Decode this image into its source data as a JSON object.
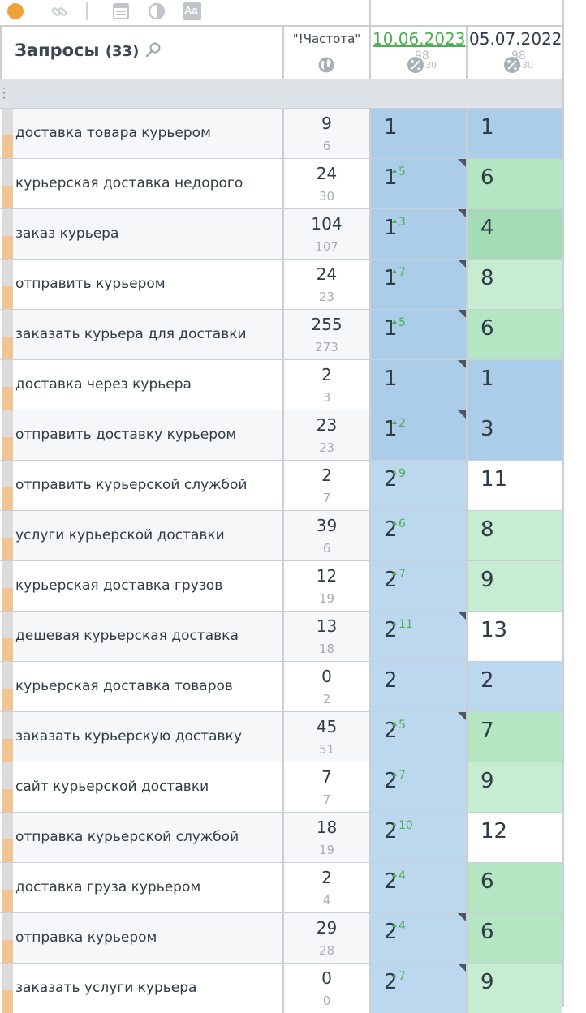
{
  "toolbar": {
    "icons": [
      "orange-dot-icon",
      "link-icon",
      "divider",
      "window-icon",
      "contrast-icon",
      "font-size-icon"
    ],
    "font_icon_label": "Aa",
    "accent": "#f0a23a"
  },
  "header": {
    "queries_label": "Запросы",
    "queries_count": "(33)",
    "freq_label": "\"!Частота\"",
    "dates": [
      {
        "date": "10.06.2023",
        "is_link": true,
        "percent": "98",
        "range": "1-30"
      },
      {
        "date": "05.07.2022",
        "is_link": false,
        "percent": "98",
        "range": "1-30"
      }
    ]
  },
  "colors": {
    "blue_strong": "#abcde9",
    "blue_light": "#bcd8ee",
    "green_strong": "#a4ddb5",
    "green_mid": "#b4e6c3",
    "green_light": "#c6ecd2",
    "white": "#ffffff",
    "change_green": "#4caf50"
  },
  "rows": [
    {
      "query": "доставка товара курьером",
      "freq": "9",
      "freq2": "6",
      "p1": "1",
      "ch1": "",
      "p2": "1",
      "ch2": "",
      "bg1": "blue_strong",
      "bg2": "blue_strong",
      "tri": false
    },
    {
      "query": "курьерская доставка недорого",
      "freq": "24",
      "freq2": "30",
      "p1": "1",
      "ch1": "5",
      "p2": "6",
      "ch2": "",
      "bg1": "blue_strong",
      "bg2": "green_mid",
      "tri": true
    },
    {
      "query": "заказ курьера",
      "freq": "104",
      "freq2": "107",
      "p1": "1",
      "ch1": "3",
      "p2": "4",
      "ch2": "",
      "bg1": "blue_strong",
      "bg2": "green_strong",
      "tri": true
    },
    {
      "query": "отправить курьером",
      "freq": "24",
      "freq2": "23",
      "p1": "1",
      "ch1": "7",
      "p2": "8",
      "ch2": "",
      "bg1": "blue_strong",
      "bg2": "green_light",
      "tri": true
    },
    {
      "query": "заказать курьера для доставки",
      "freq": "255",
      "freq2": "273",
      "p1": "1",
      "ch1": "5",
      "p2": "6",
      "ch2": "",
      "bg1": "blue_strong",
      "bg2": "green_mid",
      "tri": true
    },
    {
      "query": "доставка через курьера",
      "freq": "2",
      "freq2": "3",
      "p1": "1",
      "ch1": "",
      "p2": "1",
      "ch2": "",
      "bg1": "blue_strong",
      "bg2": "blue_strong",
      "tri": true
    },
    {
      "query": "отправить доставку курьером",
      "freq": "23",
      "freq2": "23",
      "p1": "1",
      "ch1": "2",
      "p2": "3",
      "ch2": "",
      "bg1": "blue_strong",
      "bg2": "blue_strong",
      "tri": true
    },
    {
      "query": "отправить курьерской службой",
      "freq": "2",
      "freq2": "7",
      "p1": "2",
      "ch1": "9",
      "p2": "11",
      "ch2": "",
      "bg1": "blue_light",
      "bg2": "white",
      "tri": false
    },
    {
      "query": "услуги курьерской доставки",
      "freq": "39",
      "freq2": "6",
      "p1": "2",
      "ch1": "6",
      "p2": "8",
      "ch2": "",
      "bg1": "blue_light",
      "bg2": "green_light",
      "tri": false
    },
    {
      "query": "курьерская доставка грузов",
      "freq": "12",
      "freq2": "19",
      "p1": "2",
      "ch1": "7",
      "p2": "9",
      "ch2": "",
      "bg1": "blue_light",
      "bg2": "green_light",
      "tri": false
    },
    {
      "query": "дешевая курьерская доставка",
      "freq": "13",
      "freq2": "18",
      "p1": "2",
      "ch1": "11",
      "p2": "13",
      "ch2": "",
      "bg1": "blue_light",
      "bg2": "white",
      "tri": true
    },
    {
      "query": "курьерская доставка товаров",
      "freq": "0",
      "freq2": "2",
      "p1": "2",
      "ch1": "",
      "p2": "2",
      "ch2": "",
      "bg1": "blue_light",
      "bg2": "blue_light",
      "tri": false
    },
    {
      "query": "заказать курьерскую доставку",
      "freq": "45",
      "freq2": "51",
      "p1": "2",
      "ch1": "5",
      "p2": "7",
      "ch2": "",
      "bg1": "blue_light",
      "bg2": "green_mid",
      "tri": true
    },
    {
      "query": "сайт курьерской доставки",
      "freq": "7",
      "freq2": "7",
      "p1": "2",
      "ch1": "7",
      "p2": "9",
      "ch2": "",
      "bg1": "blue_light",
      "bg2": "green_light",
      "tri": false
    },
    {
      "query": "отправка курьерской службой",
      "freq": "18",
      "freq2": "19",
      "p1": "2",
      "ch1": "10",
      "p2": "12",
      "ch2": "",
      "bg1": "blue_light",
      "bg2": "white",
      "tri": false
    },
    {
      "query": "доставка груза курьером",
      "freq": "2",
      "freq2": "4",
      "p1": "2",
      "ch1": "4",
      "p2": "6",
      "ch2": "",
      "bg1": "blue_light",
      "bg2": "green_mid",
      "tri": false
    },
    {
      "query": "отправка курьером",
      "freq": "29",
      "freq2": "28",
      "p1": "2",
      "ch1": "4",
      "p2": "6",
      "ch2": "",
      "bg1": "blue_light",
      "bg2": "green_mid",
      "tri": true
    },
    {
      "query": "заказать услуги курьера",
      "freq": "0",
      "freq2": "0",
      "p1": "2",
      "ch1": "7",
      "p2": "9",
      "ch2": "",
      "bg1": "blue_light",
      "bg2": "green_light",
      "tri": true
    }
  ]
}
